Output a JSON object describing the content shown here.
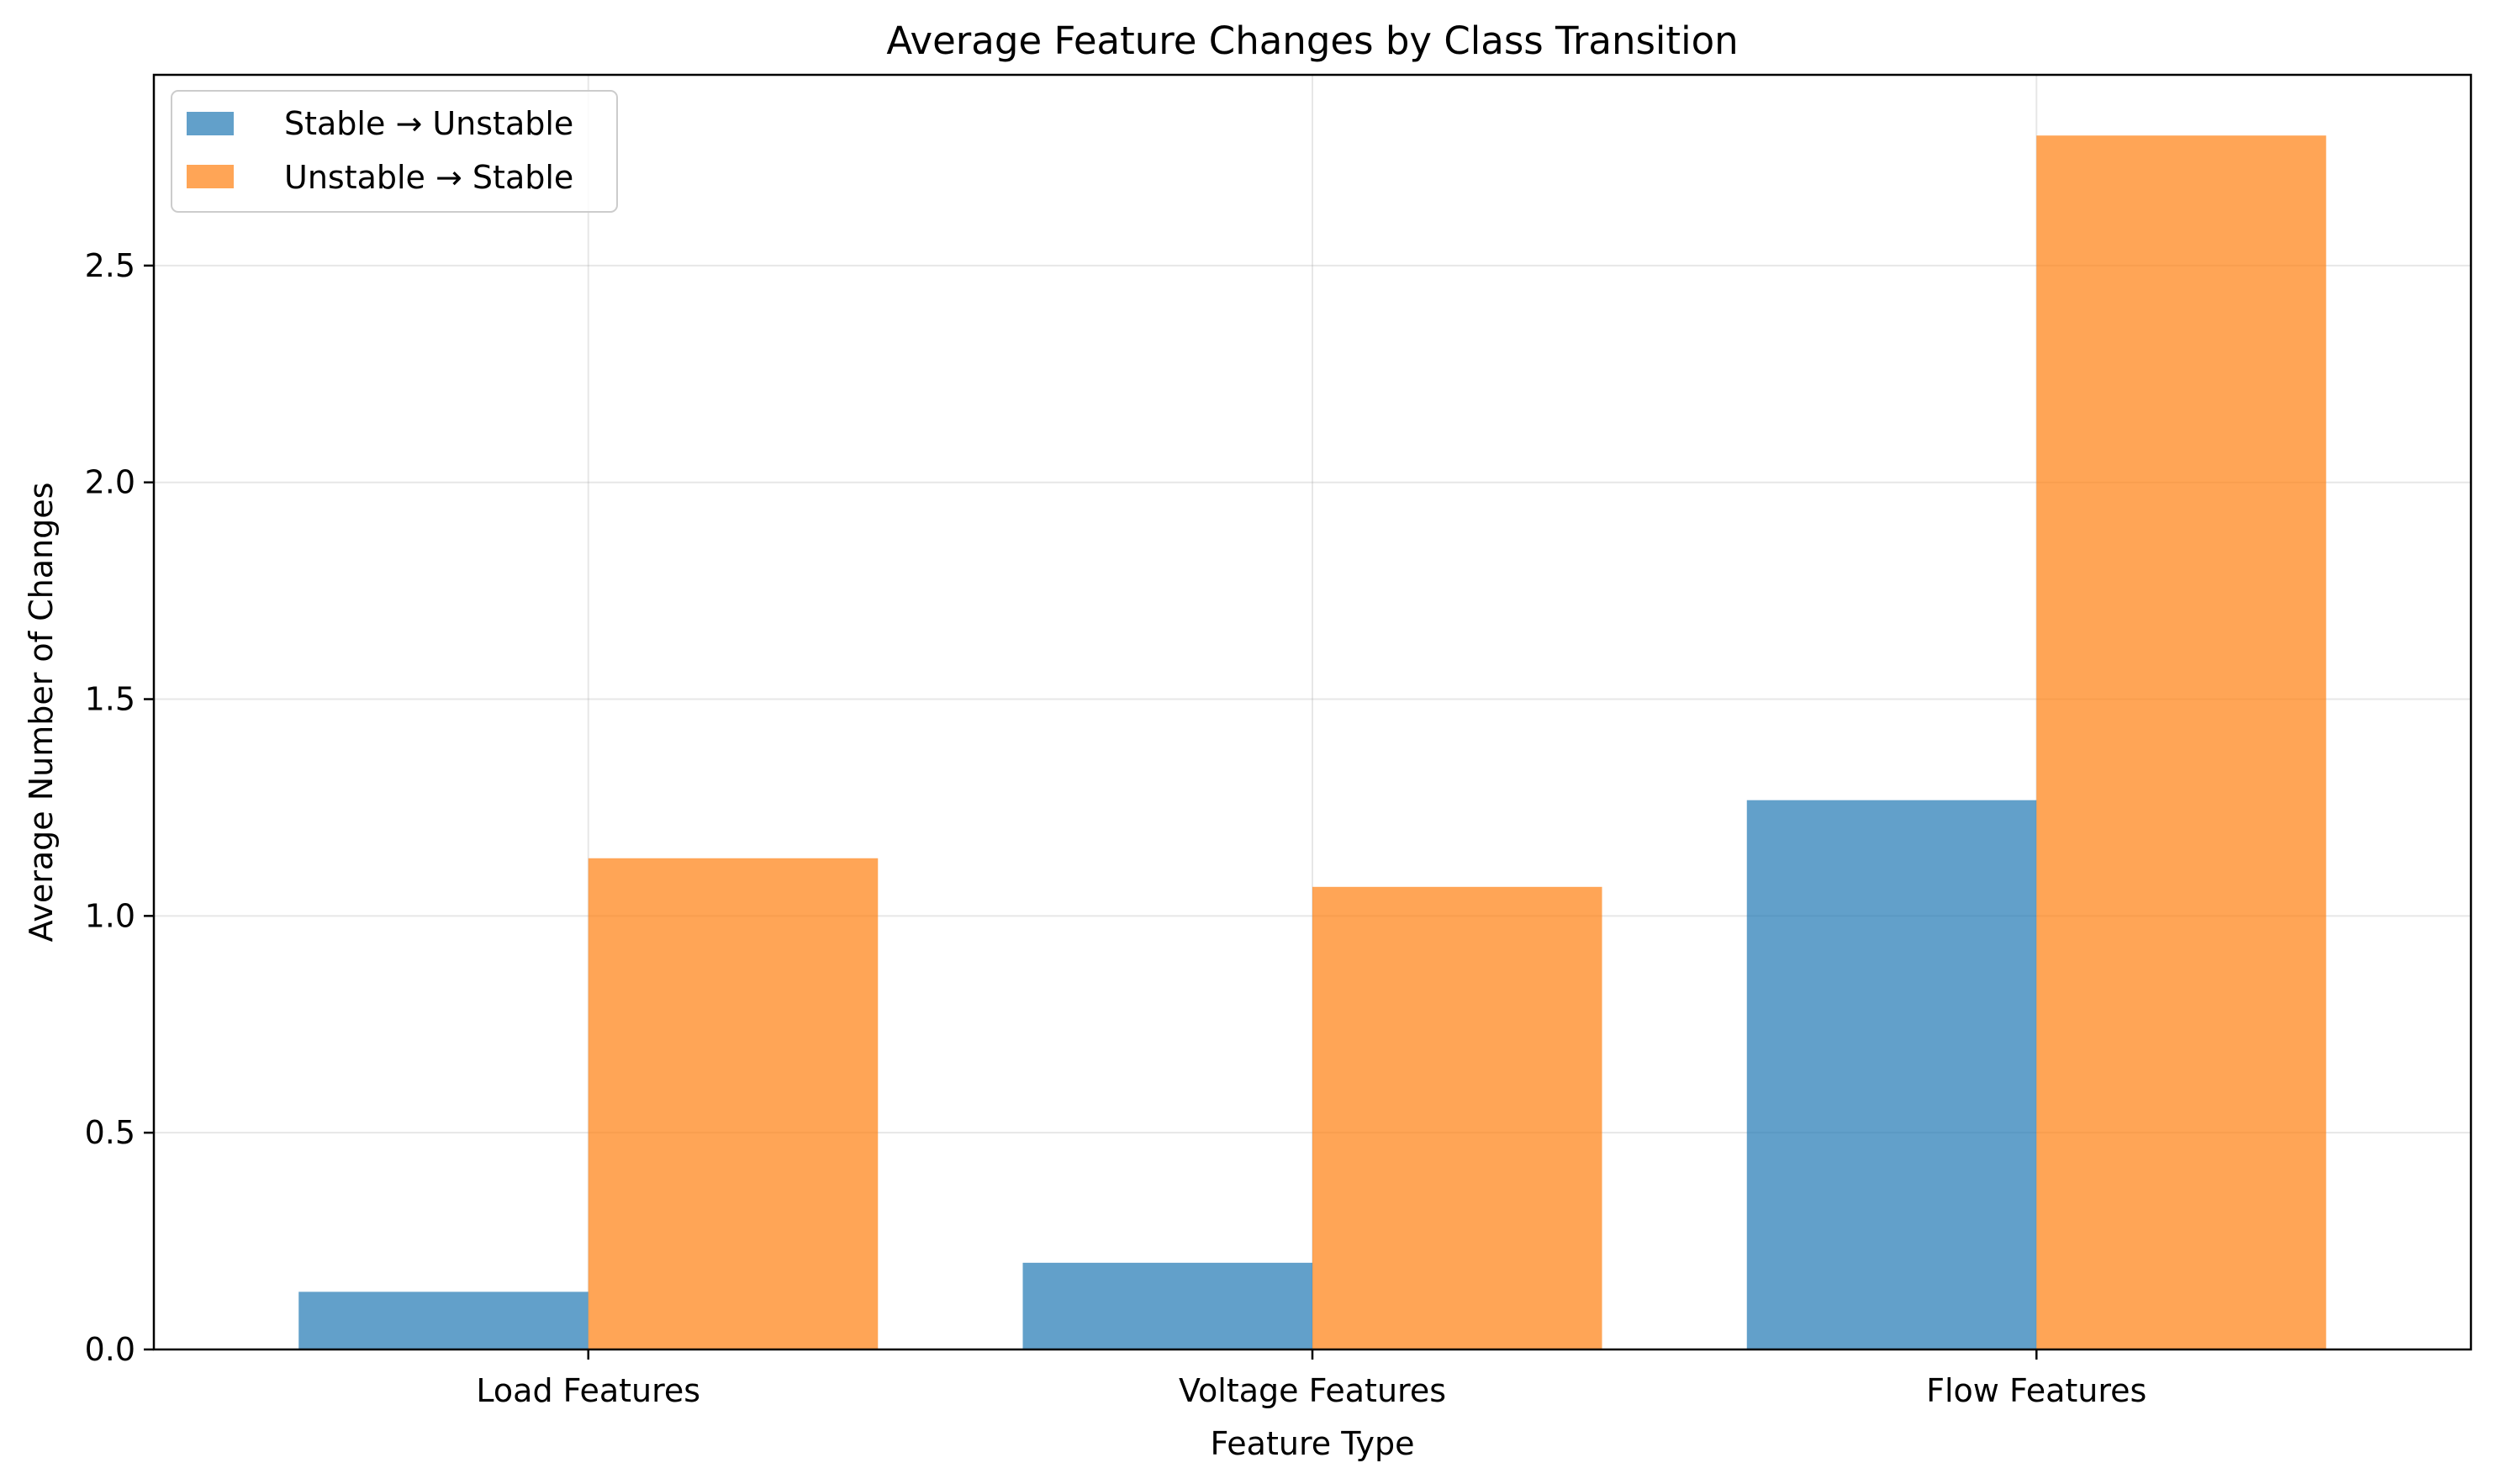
{
  "chart_data": {
    "type": "bar",
    "title": "Average Feature Changes by Class Transition",
    "xlabel": "Feature Type",
    "ylabel": "Average Number of Changes",
    "categories": [
      "Load Features",
      "Voltage Features",
      "Flow Features"
    ],
    "series": [
      {
        "name": "Stable → Unstable",
        "values": [
          0.133,
          0.2,
          1.267
        ],
        "color": "#1f77b4"
      },
      {
        "name": "Unstable → Stable",
        "values": [
          1.133,
          1.067,
          2.8
        ],
        "color": "#ff7f0e"
      }
    ],
    "ylim": [
      0,
      2.94
    ],
    "yticks": [
      "0.0",
      "0.5",
      "1.0",
      "1.5",
      "2.0",
      "2.5"
    ],
    "grid": true,
    "legend_position": "top-left"
  }
}
